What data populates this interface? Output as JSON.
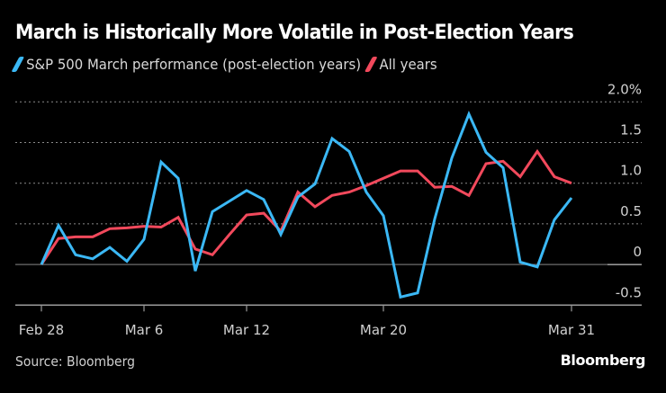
{
  "chart_data": {
    "type": "line",
    "title": "March is Historically More Volatile in Post-Election Years",
    "xlabel": "",
    "ylabel": "",
    "y_unit": "%",
    "ylim": [
      -0.5,
      2.0
    ],
    "y_ticks": [
      2.0,
      1.5,
      1.0,
      0.5,
      0,
      -0.5
    ],
    "y_tick_labels": [
      "2.0%",
      "1.5",
      "1.0",
      "0.5",
      "0",
      "-0.5"
    ],
    "grid": true,
    "legend_position": "top-left",
    "x": [
      "Feb 28",
      "Mar 1",
      "Mar 2",
      "Mar 3",
      "Mar 4",
      "Mar 5",
      "Mar 6",
      "Mar 7",
      "Mar 8",
      "Mar 9",
      "Mar 10",
      "Mar 11",
      "Mar 12",
      "Mar 13",
      "Mar 14",
      "Mar 15",
      "Mar 16",
      "Mar 17",
      "Mar 18",
      "Mar 19",
      "Mar 20",
      "Mar 21",
      "Mar 22",
      "Mar 23",
      "Mar 24",
      "Mar 25",
      "Mar 26",
      "Mar 27",
      "Mar 28",
      "Mar 29",
      "Mar 30",
      "Mar 31"
    ],
    "x_tick_labels": [
      "Feb 28",
      "Mar 6",
      "Mar 12",
      "Mar 20",
      "Mar 31"
    ],
    "series": [
      {
        "name": "S&P 500 March performance (post-election years)",
        "color": "#3bb8f5",
        "values": [
          0,
          0.48,
          0.12,
          0.07,
          0.21,
          0.04,
          0.31,
          1.26,
          1.06,
          -0.08,
          0.65,
          0.78,
          0.91,
          0.8,
          0.37,
          0.83,
          0.99,
          1.55,
          1.39,
          0.89,
          0.6,
          -0.4,
          -0.35,
          0.56,
          1.31,
          1.85,
          1.38,
          1.19,
          0.03,
          -0.03,
          0.55,
          0.82
        ]
      },
      {
        "name": "All years",
        "color": "#f2495c",
        "values": [
          0,
          0.32,
          0.34,
          0.34,
          0.44,
          0.45,
          0.47,
          0.46,
          0.58,
          0.19,
          0.12,
          0.37,
          0.61,
          0.63,
          0.41,
          0.89,
          0.71,
          0.85,
          0.89,
          0.97,
          1.06,
          1.15,
          1.15,
          0.95,
          0.96,
          0.85,
          1.24,
          1.27,
          1.08,
          1.39,
          1.08,
          1.0
        ]
      }
    ]
  },
  "footer": {
    "source": "Source: Bloomberg",
    "brand": "Bloomberg"
  }
}
